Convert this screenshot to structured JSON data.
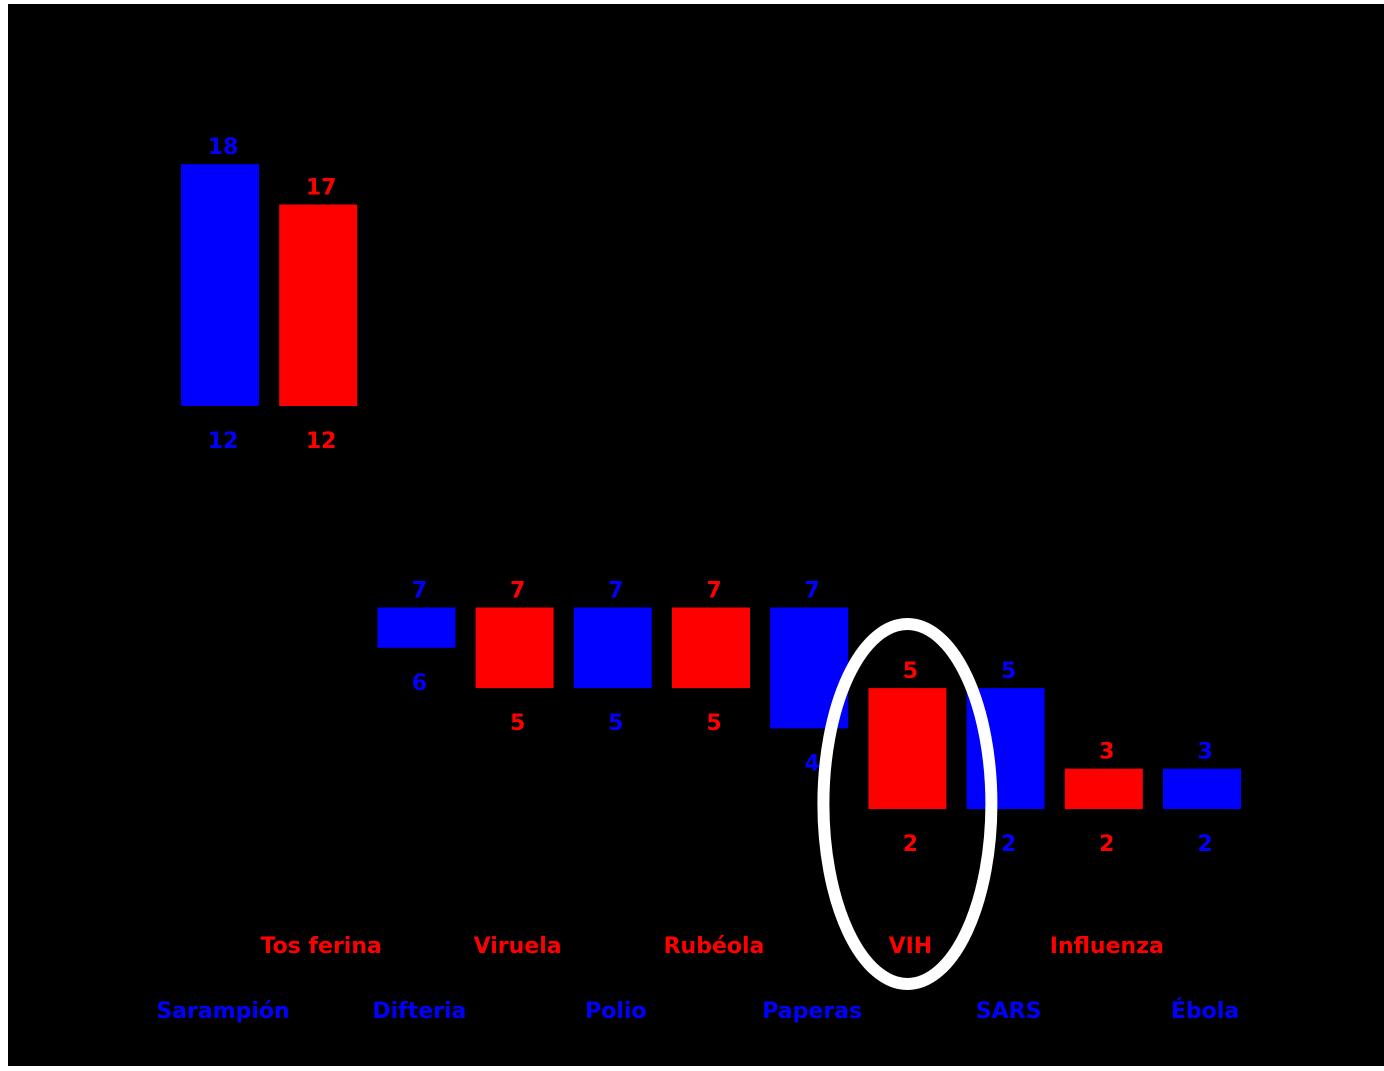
{
  "chart_data": {
    "type": "bar",
    "subtype": "floating-range",
    "title": "",
    "xlabel": "",
    "ylabel": "",
    "ylim": [
      2,
      18
    ],
    "grid": false,
    "legend": "none",
    "colors": {
      "blue": "#0000ff",
      "red": "#ff0000",
      "background": "#000000",
      "highlight": "#ffffff"
    },
    "categories": [
      "Sarampión",
      "Tos ferina",
      "Difteria",
      "Viruela",
      "Polio",
      "Rubéola",
      "Paperas",
      "VIH",
      "SARS",
      "Influenza",
      "Ébola"
    ],
    "bars": [
      {
        "label": "Sarampión",
        "low": 12,
        "high": 18,
        "color": "blue"
      },
      {
        "label": "Tos ferina",
        "low": 12,
        "high": 17,
        "color": "red"
      },
      {
        "label": "Difteria",
        "low": 6,
        "high": 7,
        "color": "blue"
      },
      {
        "label": "Viruela",
        "low": 5,
        "high": 7,
        "color": "red"
      },
      {
        "label": "Polio",
        "low": 5,
        "high": 7,
        "color": "blue"
      },
      {
        "label": "Rubéola",
        "low": 5,
        "high": 7,
        "color": "red"
      },
      {
        "label": "Paperas",
        "low": 4,
        "high": 7,
        "color": "blue"
      },
      {
        "label": "VIH",
        "low": 2,
        "high": 5,
        "color": "red"
      },
      {
        "label": "SARS",
        "low": 2,
        "high": 5,
        "color": "blue"
      },
      {
        "label": "Influenza",
        "low": 2,
        "high": 3,
        "color": "red"
      },
      {
        "label": "Ébola",
        "low": 2,
        "high": 3,
        "color": "blue"
      }
    ],
    "highlighted": "VIH"
  }
}
